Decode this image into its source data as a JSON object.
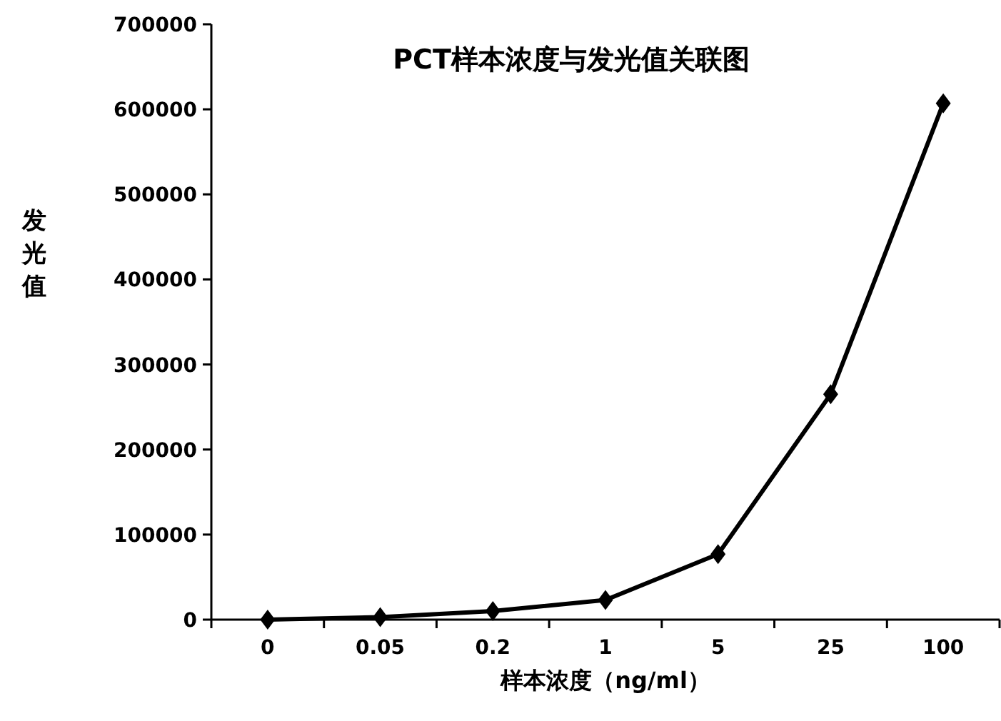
{
  "chart_data": {
    "type": "line",
    "title": "PCT样本浓度与发光值关联图",
    "xlabel": "样本浓度（ng/ml）",
    "ylabel": "发光值",
    "categories": [
      "0",
      "0.05",
      "0.2",
      "1",
      "5",
      "25",
      "100"
    ],
    "series": [
      {
        "color": "#000000",
        "values": [
          0,
          3000,
          10000,
          23000,
          77000,
          265000,
          607000
        ]
      }
    ],
    "ylim": [
      0,
      700000
    ],
    "yticks": [
      0,
      100000,
      200000,
      300000,
      400000,
      500000,
      600000,
      700000
    ],
    "marker": "diamond",
    "line_style": "solid",
    "grid": false
  }
}
